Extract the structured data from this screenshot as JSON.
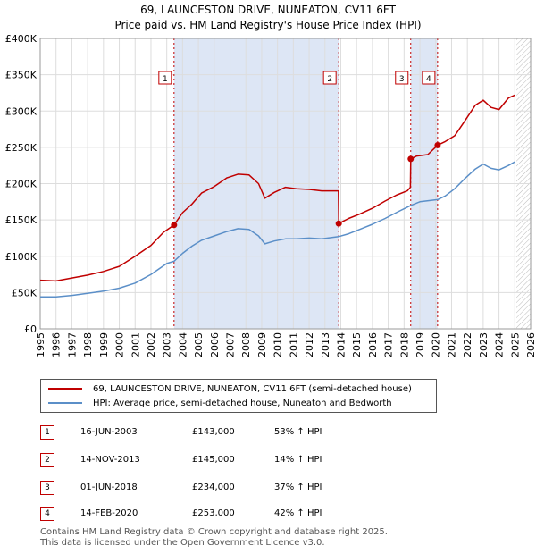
{
  "title": {
    "line1": "69, LAUNCESTON DRIVE, NUNEATON, CV11 6FT",
    "line2": "Price paid vs. HM Land Registry's House Price Index (HPI)"
  },
  "chart_data": {
    "type": "line",
    "title": "69, LAUNCESTON DRIVE, NUNEATON, CV11 6FT — Price paid vs. HM Land Registry's House Price Index (HPI)",
    "xlim": [
      1995,
      2026
    ],
    "ylim": [
      0,
      400000
    ],
    "y_ticks": [
      {
        "value": 0,
        "label": "£0"
      },
      {
        "value": 50000,
        "label": "£50K"
      },
      {
        "value": 100000,
        "label": "£100K"
      },
      {
        "value": 150000,
        "label": "£150K"
      },
      {
        "value": 200000,
        "label": "£200K"
      },
      {
        "value": 250000,
        "label": "£250K"
      },
      {
        "value": 300000,
        "label": "£300K"
      },
      {
        "value": 350000,
        "label": "£350K"
      },
      {
        "value": 400000,
        "label": "£400K"
      }
    ],
    "x_ticks": [
      "1995",
      "1996",
      "1997",
      "1998",
      "1999",
      "2000",
      "2001",
      "2002",
      "2003",
      "2004",
      "2005",
      "2006",
      "2007",
      "2008",
      "2009",
      "2010",
      "2011",
      "2012",
      "2013",
      "2014",
      "2015",
      "2016",
      "2017",
      "2018",
      "2019",
      "2020",
      "2021",
      "2022",
      "2023",
      "2024",
      "2025",
      "2026"
    ],
    "grid": true,
    "series": [
      {
        "name": "69, LAUNCESTON DRIVE, NUNEATON, CV11 6FT (semi-detached house)",
        "color": "#c00000",
        "points": [
          [
            1995.0,
            67000
          ],
          [
            1996.0,
            66000
          ],
          [
            1997.0,
            70000
          ],
          [
            1998.0,
            74000
          ],
          [
            1999.0,
            79000
          ],
          [
            2000.0,
            86000
          ],
          [
            2001.0,
            100000
          ],
          [
            2002.0,
            115000
          ],
          [
            2002.8,
            133000
          ],
          [
            2003.46,
            143000
          ],
          [
            2004.0,
            160000
          ],
          [
            2004.6,
            172000
          ],
          [
            2005.2,
            187000
          ],
          [
            2006.0,
            196000
          ],
          [
            2006.8,
            208000
          ],
          [
            2007.5,
            213000
          ],
          [
            2008.2,
            212000
          ],
          [
            2008.8,
            200000
          ],
          [
            2009.2,
            180000
          ],
          [
            2009.8,
            188000
          ],
          [
            2010.5,
            195000
          ],
          [
            2011.2,
            193000
          ],
          [
            2012.0,
            192000
          ],
          [
            2012.8,
            190000
          ],
          [
            2013.5,
            190000
          ],
          [
            2013.85,
            190000
          ],
          [
            2013.87,
            145000
          ],
          [
            2014.5,
            152000
          ],
          [
            2015.2,
            158000
          ],
          [
            2016.0,
            166000
          ],
          [
            2016.8,
            176000
          ],
          [
            2017.5,
            184000
          ],
          [
            2018.2,
            190000
          ],
          [
            2018.4,
            195000
          ],
          [
            2018.42,
            234000
          ],
          [
            2018.8,
            238000
          ],
          [
            2019.5,
            240000
          ],
          [
            2020.12,
            253000
          ],
          [
            2020.6,
            258000
          ],
          [
            2021.2,
            266000
          ],
          [
            2021.8,
            285000
          ],
          [
            2022.5,
            308000
          ],
          [
            2023.0,
            315000
          ],
          [
            2023.5,
            305000
          ],
          [
            2024.0,
            302000
          ],
          [
            2024.6,
            318000
          ],
          [
            2025.0,
            322000
          ]
        ]
      },
      {
        "name": "HPI: Average price, semi-detached house, Nuneaton and Bedworth",
        "color": "#5b8fc8",
        "points": [
          [
            1995.0,
            44000
          ],
          [
            1996.0,
            44000
          ],
          [
            1997.0,
            46000
          ],
          [
            1998.0,
            49000
          ],
          [
            1999.0,
            52000
          ],
          [
            2000.0,
            56000
          ],
          [
            2001.0,
            63000
          ],
          [
            2002.0,
            75000
          ],
          [
            2003.0,
            90000
          ],
          [
            2003.46,
            93000
          ],
          [
            2004.0,
            104000
          ],
          [
            2004.6,
            114000
          ],
          [
            2005.2,
            122000
          ],
          [
            2006.0,
            128000
          ],
          [
            2006.8,
            134000
          ],
          [
            2007.5,
            138000
          ],
          [
            2008.2,
            137000
          ],
          [
            2008.8,
            128000
          ],
          [
            2009.2,
            117000
          ],
          [
            2009.8,
            121000
          ],
          [
            2010.5,
            124000
          ],
          [
            2011.2,
            124000
          ],
          [
            2012.0,
            125000
          ],
          [
            2012.8,
            124000
          ],
          [
            2013.5,
            126000
          ],
          [
            2013.87,
            127000
          ],
          [
            2014.5,
            131000
          ],
          [
            2015.2,
            137000
          ],
          [
            2016.0,
            144000
          ],
          [
            2016.8,
            152000
          ],
          [
            2017.5,
            160000
          ],
          [
            2018.42,
            170000
          ],
          [
            2019.0,
            175000
          ],
          [
            2020.12,
            178000
          ],
          [
            2020.6,
            183000
          ],
          [
            2021.2,
            193000
          ],
          [
            2021.8,
            206000
          ],
          [
            2022.5,
            220000
          ],
          [
            2023.0,
            227000
          ],
          [
            2023.5,
            221000
          ],
          [
            2024.0,
            219000
          ],
          [
            2024.6,
            225000
          ],
          [
            2025.0,
            230000
          ]
        ]
      }
    ],
    "sales": [
      {
        "num": "1",
        "date": "16-JUN-2003",
        "x": 2003.46,
        "price": 143000,
        "price_label": "£143,000",
        "hpi": "53% ↑ HPI"
      },
      {
        "num": "2",
        "date": "14-NOV-2013",
        "x": 2013.87,
        "price": 145000,
        "price_label": "£145,000",
        "hpi": "14% ↑ HPI"
      },
      {
        "num": "3",
        "date": "01-JUN-2018",
        "x": 2018.42,
        "price": 234000,
        "price_label": "£234,000",
        "hpi": "37% ↑ HPI"
      },
      {
        "num": "4",
        "date": "14-FEB-2020",
        "x": 2020.12,
        "price": 253000,
        "price_label": "£253,000",
        "hpi": "42% ↑ HPI"
      }
    ],
    "shaded_periods": [
      [
        2003.46,
        2013.87
      ],
      [
        2018.42,
        2020.12
      ]
    ],
    "forecast_from": 2025.1
  },
  "legend": {
    "property_label": "69, LAUNCESTON DRIVE, NUNEATON, CV11 6FT (semi-detached house)",
    "hpi_label": "HPI: Average price, semi-detached house, Nuneaton and Bedworth"
  },
  "footer": {
    "line1": "Contains HM Land Registry data © Crown copyright and database right 2025.",
    "line2": "This data is licensed under the Open Government Licence v3.0."
  },
  "colors": {
    "property": "#c00000",
    "hpi": "#5b8fc8",
    "shade": "#dde6f5",
    "grid": "#dddddd"
  }
}
